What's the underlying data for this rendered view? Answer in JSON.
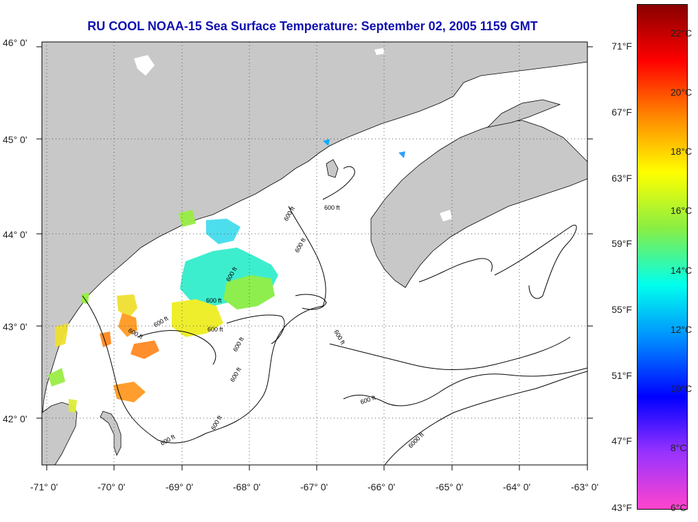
{
  "title": "RU COOL  NOAA-15  Sea Surface Temperature:  September 02, 2005 1159 GMT",
  "latitude_labels": [
    "46° 0'",
    "45° 0'",
    "44° 0'",
    "43° 0'",
    "42° 0'"
  ],
  "longitude_labels": [
    "-71° 0'",
    "-70° 0'",
    "-69° 0'",
    "-68° 0'",
    "-67° 0'",
    "-66° 0'",
    "-65° 0'",
    "-64° 0'",
    "-63° 0'"
  ],
  "contour_labels": [
    "600 ft",
    "600 ft",
    "600 ft",
    "600 ft",
    "600 ft",
    "600 ft",
    "600 ft",
    "600 ft",
    "600 ft",
    "600 ft",
    "600 ft",
    "600 ft",
    "600 ft",
    "600 ft",
    "6000 ft"
  ],
  "colorbar": {
    "celsius_labels": [
      "22°C",
      "20°C",
      "18°C",
      "16°C",
      "14°C",
      "12°C",
      "10°C",
      "8°C",
      "6°C"
    ],
    "fahrenheit_labels": [
      "71°F",
      "67°F",
      "63°F",
      "59°F",
      "55°F",
      "51°F",
      "47°F",
      "43°F"
    ],
    "colors": [
      "#880000",
      "#ff0000",
      "#ff8800",
      "#ffff00",
      "#88ee44",
      "#00ffee",
      "#0088ff",
      "#0000ff",
      "#9933ff",
      "#ff44cc"
    ]
  },
  "land_color": "#c8c8c8"
}
